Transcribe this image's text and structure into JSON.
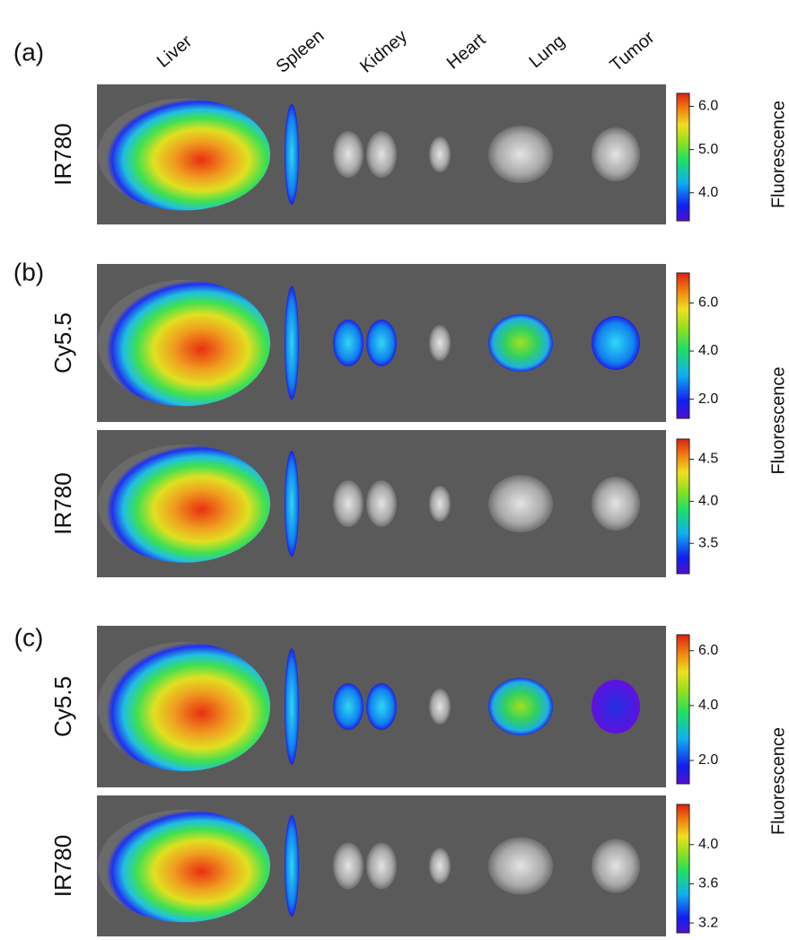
{
  "organs": [
    "Liver",
    "Spleen",
    "Kidney",
    "Heart",
    "Lung",
    "Tumor"
  ],
  "panels": [
    {
      "label": "(a)",
      "colorbar_title": "Fluorescence",
      "rows": [
        {
          "label": "IR780",
          "colorbar": {
            "lim": [
              3.35,
              6.3
            ],
            "ticks": [
              {
                "value": 4,
                "label": "4.0"
              },
              {
                "value": 5,
                "label": "5.0"
              },
              {
                "value": 6,
                "label": "6.0"
              }
            ]
          }
        }
      ]
    },
    {
      "label": "(b)",
      "colorbar_title": "Fluorescence",
      "rows": [
        {
          "label": "Cy5.5",
          "colorbar": {
            "lim": [
              1.2,
              7.25
            ],
            "ticks": [
              {
                "value": 2,
                "label": "2.0"
              },
              {
                "value": 4,
                "label": "4.0"
              },
              {
                "value": 6,
                "label": "6.0"
              }
            ]
          }
        },
        {
          "label": "IR780",
          "colorbar": {
            "lim": [
              3.14,
              4.74
            ],
            "ticks": [
              3.5,
              {
                "value": 4,
                "label": "4.0"
              },
              4.5
            ]
          }
        }
      ]
    },
    {
      "label": "(c)",
      "colorbar_title": "Fluorescence",
      "rows": [
        {
          "label": "Cy5.5",
          "colorbar": {
            "lim": [
              1.15,
              6.58
            ],
            "ticks": [
              {
                "value": 2,
                "label": "2.0"
              },
              {
                "value": 4,
                "label": "4.0"
              },
              {
                "value": 6,
                "label": "6.0"
              }
            ]
          }
        },
        {
          "label": "IR780",
          "colorbar": {
            "lim": [
              3.1,
              4.41
            ],
            "ticks": [
              3.2,
              3.6,
              {
                "value": 4,
                "label": "4.0"
              }
            ]
          }
        }
      ]
    }
  ]
}
